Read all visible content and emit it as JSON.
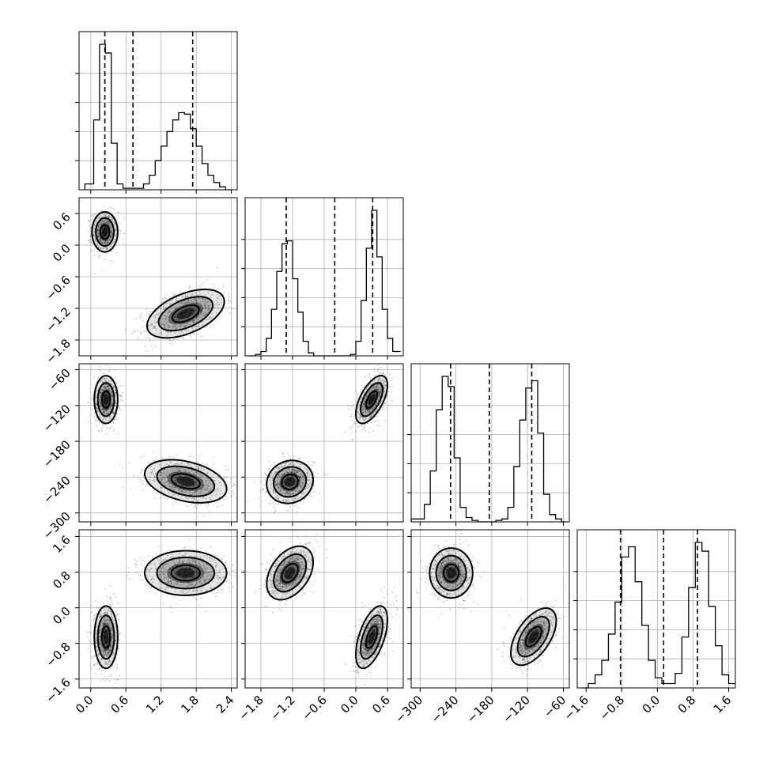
{
  "chart_data": {
    "type": "scatter",
    "style": "corner-plot",
    "grid": true,
    "colors": {
      "marks": "#000000",
      "grid": "#b0b0b0",
      "background": "#ffffff"
    },
    "title": "",
    "parameters": [
      {
        "index": 0,
        "label": "",
        "range": [
          -0.2,
          2.5
        ],
        "ticks": [
          "0.0",
          "0.6",
          "1.2",
          "1.8",
          "2.4"
        ],
        "tick_values": [
          0.0,
          0.6,
          1.2,
          1.8,
          2.4
        ]
      },
      {
        "index": 1,
        "label": "",
        "range": [
          -2.1,
          0.9
        ],
        "ticks": [
          "−1.8",
          "−1.2",
          "−0.6",
          "0.0",
          "0.6"
        ],
        "tick_values": [
          -1.8,
          -1.2,
          -0.6,
          0.0,
          0.6
        ]
      },
      {
        "index": 2,
        "label": "",
        "range": [
          -315,
          -50
        ],
        "ticks": [
          "−300",
          "−240",
          "−180",
          "−120",
          "−60"
        ],
        "tick_values": [
          -300,
          -240,
          -180,
          -120,
          -60
        ]
      },
      {
        "index": 3,
        "label": "",
        "range": [
          -1.8,
          1.75
        ],
        "ticks": [
          "−1.6",
          "−0.8",
          "0.0",
          "0.8",
          "1.6"
        ],
        "tick_values": [
          -1.6,
          -0.8,
          0.0,
          0.8,
          1.6
        ]
      }
    ],
    "histograms": [
      {
        "param": 0,
        "bin_edges": [
          -0.1,
          0.05,
          0.15,
          0.25,
          0.35,
          0.45,
          0.55,
          0.65,
          0.75,
          0.9,
          1.0,
          1.1,
          1.2,
          1.3,
          1.4,
          1.5,
          1.6,
          1.7,
          1.8,
          1.9,
          2.0,
          2.1,
          2.2,
          2.3,
          2.4
        ],
        "counts": [
          0.04,
          0.48,
          1.0,
          0.94,
          0.32,
          0.04,
          0.01,
          0.01,
          0.01,
          0.04,
          0.1,
          0.2,
          0.3,
          0.4,
          0.48,
          0.53,
          0.52,
          0.42,
          0.3,
          0.18,
          0.1,
          0.05,
          0.02,
          0.0
        ],
        "quantiles": [
          0.24,
          0.72,
          1.74
        ]
      },
      {
        "param": 1,
        "bin_edges": [
          -2.05,
          -1.9,
          -1.8,
          -1.7,
          -1.6,
          -1.5,
          -1.4,
          -1.3,
          -1.2,
          -1.1,
          -1.0,
          -0.9,
          -0.8,
          -0.7,
          -0.6,
          -0.5,
          -0.4,
          -0.3,
          -0.2,
          -0.1,
          0.0,
          0.1,
          0.2,
          0.3,
          0.4,
          0.5,
          0.6,
          0.7,
          0.85
        ],
        "counts": [
          0.0,
          0.01,
          0.03,
          0.12,
          0.32,
          0.58,
          0.77,
          0.79,
          0.53,
          0.3,
          0.1,
          0.02,
          0.0,
          0.0,
          0.0,
          0.0,
          0.0,
          0.0,
          0.0,
          0.01,
          0.1,
          0.38,
          0.74,
          1.0,
          0.68,
          0.32,
          0.12,
          0.03
        ],
        "quantiles": [
          -1.32,
          -0.4,
          0.32
        ]
      },
      {
        "param": 2,
        "bin_edges": [
          -315,
          -303,
          -293,
          -283,
          -273,
          -263,
          -253,
          -243,
          -233,
          -223,
          -213,
          -203,
          -193,
          -183,
          -173,
          -163,
          -153,
          -143,
          -133,
          -123,
          -113,
          -103,
          -93,
          -83,
          -73,
          -63,
          -55
        ],
        "counts": [
          0.02,
          0.02,
          0.12,
          0.35,
          0.77,
          1.0,
          0.93,
          0.44,
          0.1,
          0.03,
          0.01,
          0.0,
          0.0,
          0.0,
          0.01,
          0.02,
          0.1,
          0.38,
          0.7,
          0.92,
          0.97,
          0.61,
          0.19,
          0.05,
          0.02,
          0.0
        ],
        "quantiles": [
          -249,
          -184,
          -113
        ]
      },
      {
        "param": 3,
        "bin_edges": [
          -1.7,
          -1.55,
          -1.4,
          -1.25,
          -1.1,
          -0.95,
          -0.8,
          -0.65,
          -0.5,
          -0.35,
          -0.2,
          -0.05,
          0.1,
          0.25,
          0.4,
          0.55,
          0.7,
          0.85,
          1.0,
          1.15,
          1.3,
          1.45,
          1.6,
          1.75
        ],
        "counts": [
          0.0,
          0.03,
          0.09,
          0.19,
          0.37,
          0.59,
          0.9,
          0.97,
          0.73,
          0.43,
          0.19,
          0.07,
          0.03,
          0.03,
          0.1,
          0.35,
          0.69,
          1.0,
          0.94,
          0.56,
          0.29,
          0.09,
          0.03
        ],
        "quantiles": [
          -0.83,
          0.14,
          0.9
        ]
      }
    ],
    "joint_distributions": [
      {
        "x_param": 0,
        "y_param": 1,
        "clusters": [
          {
            "mean": [
              0.24,
              0.25
            ],
            "std": [
              0.11,
              0.19
            ],
            "corr": 0.0,
            "weight": 0.5
          },
          {
            "mean": [
              1.62,
              -1.3
            ],
            "std": [
              0.33,
              0.23
            ],
            "corr": 0.5,
            "weight": 0.5
          }
        ]
      },
      {
        "x_param": 0,
        "y_param": 2,
        "clusters": [
          {
            "mean": [
              0.26,
              -110
            ],
            "std": [
              0.1,
              20
            ],
            "corr": 0.0,
            "weight": 0.5
          },
          {
            "mean": [
              1.62,
              -247
            ],
            "std": [
              0.35,
              18
            ],
            "corr": -0.35,
            "weight": 0.5
          }
        ]
      },
      {
        "x_param": 1,
        "y_param": 2,
        "clusters": [
          {
            "mean": [
              0.3,
              -110
            ],
            "std": [
              0.15,
              20
            ],
            "corr": 0.6,
            "weight": 0.5
          },
          {
            "mean": [
              -1.25,
              -248
            ],
            "std": [
              0.22,
              18
            ],
            "corr": 0.1,
            "weight": 0.5
          }
        ]
      },
      {
        "x_param": 0,
        "y_param": 3,
        "clusters": [
          {
            "mean": [
              0.26,
              -0.66
            ],
            "std": [
              0.1,
              0.35
            ],
            "corr": 0.0,
            "weight": 0.5
          },
          {
            "mean": [
              1.62,
              0.78
            ],
            "std": [
              0.35,
              0.25
            ],
            "corr": 0.0,
            "weight": 0.5
          }
        ]
      },
      {
        "x_param": 1,
        "y_param": 3,
        "clusters": [
          {
            "mean": [
              -1.25,
              0.78
            ],
            "std": [
              0.22,
              0.3
            ],
            "corr": 0.4,
            "weight": 0.5
          },
          {
            "mean": [
              0.3,
              -0.66
            ],
            "std": [
              0.15,
              0.35
            ],
            "corr": 0.55,
            "weight": 0.5
          }
        ]
      },
      {
        "x_param": 2,
        "y_param": 3,
        "clusters": [
          {
            "mean": [
              -248,
              0.78
            ],
            "std": [
              18,
              0.28
            ],
            "corr": 0.0,
            "weight": 0.5
          },
          {
            "mean": [
              -110,
              -0.65
            ],
            "std": [
              19,
              0.32
            ],
            "corr": 0.55,
            "weight": 0.5
          }
        ]
      }
    ]
  }
}
